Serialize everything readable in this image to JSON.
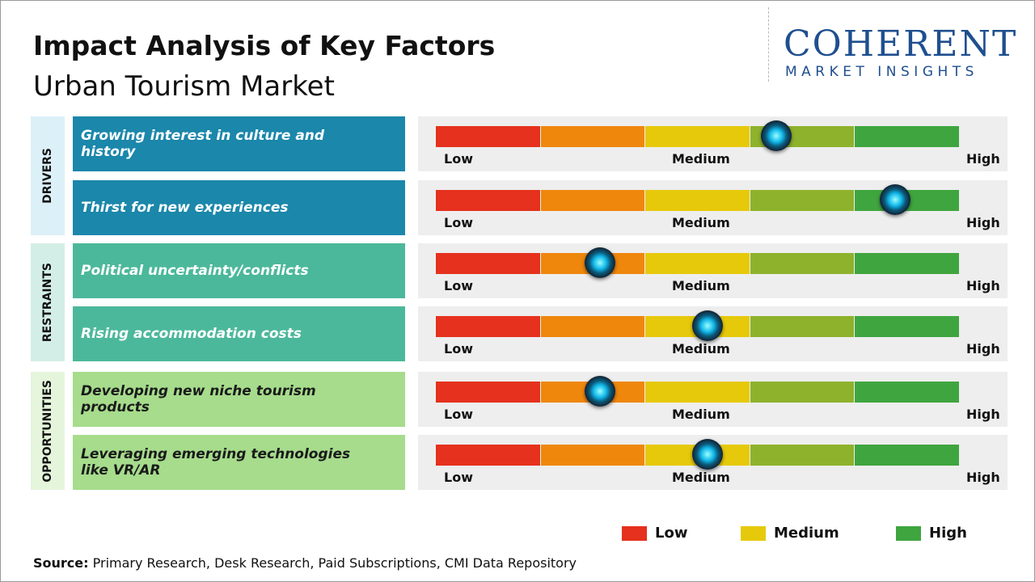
{
  "header": {
    "title": "Impact Analysis of Key Factors",
    "subtitle": "Urban Tourism Market"
  },
  "logo": {
    "name": "COHERENT",
    "tagline": "MARKET INSIGHTS"
  },
  "scale": {
    "xlim": [
      0,
      5
    ],
    "labels": [
      "Low",
      "Medium",
      "High"
    ],
    "colors": [
      "#e5311d",
      "#ef870c",
      "#e6c90b",
      "#8eb22c",
      "#3fa53f"
    ]
  },
  "groups": [
    {
      "name": "DRIVERS",
      "color": "#1b87aa",
      "tint": "#dcf0f8",
      "text_color": "#ffffff",
      "factors": [
        {
          "label": "Growing interest in culture and history",
          "impact": 3.25
        },
        {
          "label": "Thirst for new experiences",
          "impact": 4.38
        }
      ]
    },
    {
      "name": "RESTRAINTS",
      "color": "#4cb89b",
      "tint": "#d3eee6",
      "text_color": "#ffffff",
      "factors": [
        {
          "label": "Political uncertainty/conflicts",
          "impact": 1.57
        },
        {
          "label": "Rising accommodation costs",
          "impact": 2.59
        }
      ]
    },
    {
      "name": "OPPORTUNITIES",
      "color": "#a6dc8c",
      "tint": "#e5f5db",
      "text_color": "#1a1a1a",
      "factors": [
        {
          "label": "Developing new niche tourism products",
          "impact": 1.57
        },
        {
          "label": "Leveraging emerging technologies like VR/AR",
          "impact": 2.59
        }
      ]
    }
  ],
  "legend": [
    {
      "label": "Low",
      "color": "#e5311d"
    },
    {
      "label": "Medium",
      "color": "#e6c90b"
    },
    {
      "label": "High",
      "color": "#3fa53f"
    }
  ],
  "source": {
    "label": "Source:",
    "text": "Primary Research, Desk Research, Paid Subscriptions, CMI Data Repository"
  }
}
